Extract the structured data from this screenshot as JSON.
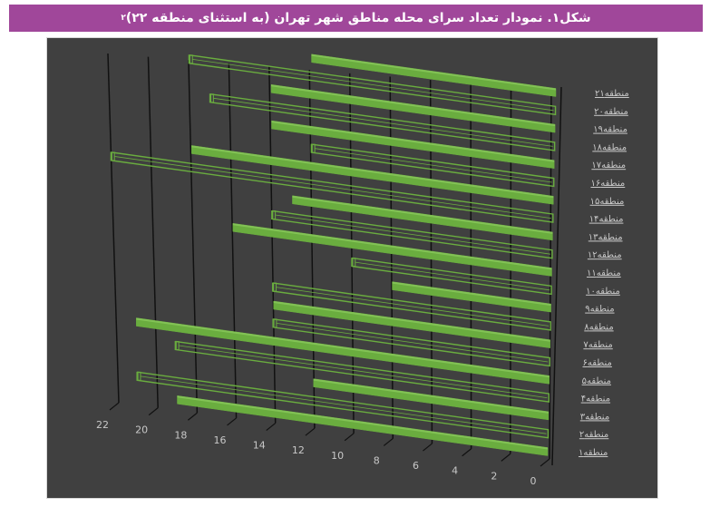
{
  "figure": {
    "title": "شکل۱. نمودار تعداد سرای محله مناطق شهر تهران (به استثنای منطقه ۲۲)",
    "footnote_mark": "۲"
  },
  "colors": {
    "title_bg": "#a0479a",
    "chart_bg": "#404040",
    "bar_fill": "#6aad3f",
    "bar_outline": "#6aad3f",
    "gridline": "#111111",
    "label_text": "#c8c8c8"
  },
  "chart_data": {
    "type": "bar",
    "orientation": "horizontal-3d",
    "title": "شکل۱. نمودار تعداد سرای محله مناطق شهر تهران (به استثنای منطقه ۲۲)",
    "xlabel": "",
    "ylabel": "",
    "xlim": [
      0,
      22
    ],
    "x_ticks": [
      "0",
      "2",
      "4",
      "6",
      "8",
      "10",
      "12",
      "14",
      "16",
      "18",
      "20",
      "22"
    ],
    "grid": true,
    "legend": null,
    "categories": [
      "منطقه۲۱",
      "منطقه۲۰",
      "منطقه۱۹",
      "منطقه۱۸",
      "منطقه۱۷",
      "منطقه۱۶",
      "منطقه۱۵",
      "منطقه۱۴",
      "منطقه۱۳",
      "منطقه۱۲",
      "منطقه۱۱",
      "منطقه۱۰",
      "منطقه۹",
      "منطقه۸",
      "منطقه۷",
      "منطقه۶",
      "منطقه۵",
      "منطقه۴",
      "منطقه۳",
      "منطقه۲",
      "منطقه۱"
    ],
    "values": [
      12,
      18,
      14,
      17,
      14,
      12,
      18,
      22,
      13,
      14,
      16,
      10,
      8,
      14,
      14,
      14,
      21,
      19,
      12,
      21,
      19
    ],
    "styles": [
      "solid",
      "outline",
      "solid",
      "outline",
      "solid",
      "outline",
      "solid",
      "outline",
      "solid",
      "outline",
      "solid",
      "outline",
      "solid",
      "outline",
      "solid",
      "outline",
      "solid",
      "outline",
      "solid",
      "outline",
      "solid"
    ]
  }
}
